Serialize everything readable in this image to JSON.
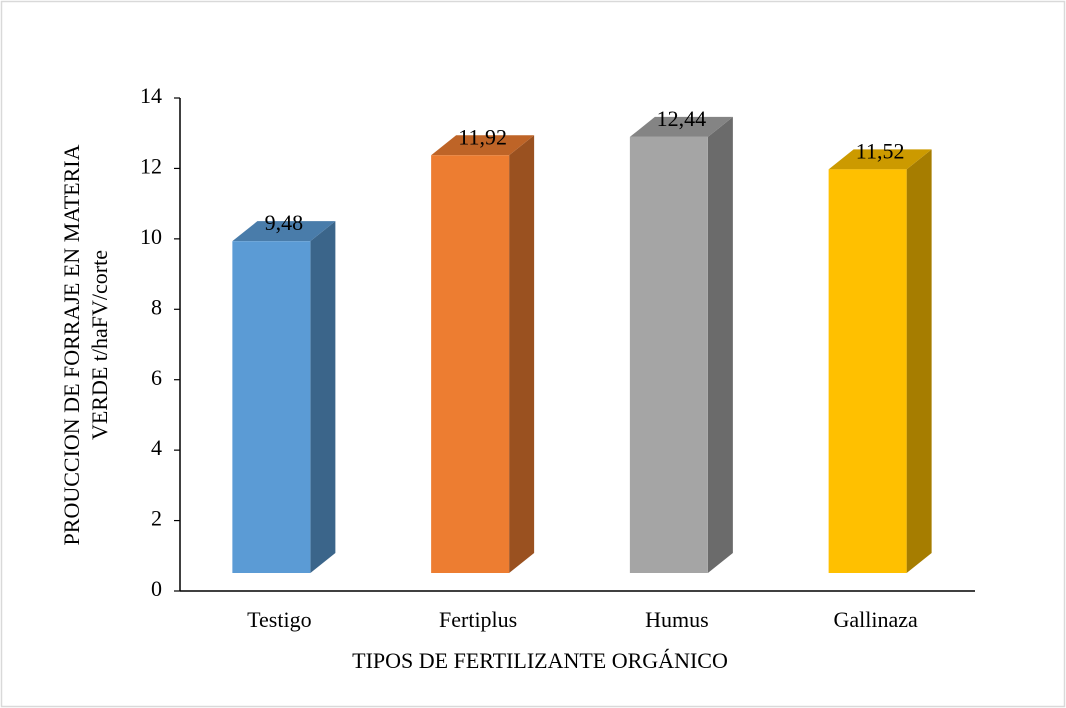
{
  "chart_data": {
    "type": "bar3d",
    "x_label": "TIPOS DE FERTILIZANTE ORGÁNICO",
    "y_label": [
      "PROUCCION DE FORRAJE EN MATERIA",
      "VERDE t/haFV/corte"
    ],
    "categories": [
      "Testigo",
      "Fertiplus",
      "Humus",
      "Gallinaza"
    ],
    "values": [
      9.48,
      11.92,
      12.44,
      11.52
    ],
    "value_labels": [
      "9,48",
      "11,92",
      "12,44",
      "11,52"
    ],
    "colors": [
      "#5b9bd5",
      "#ed7d31",
      "#a5a5a5",
      "#ffc000"
    ],
    "ylim": [
      0,
      14
    ],
    "yticks": [
      0,
      2,
      4,
      6,
      8,
      10,
      12,
      14
    ]
  }
}
